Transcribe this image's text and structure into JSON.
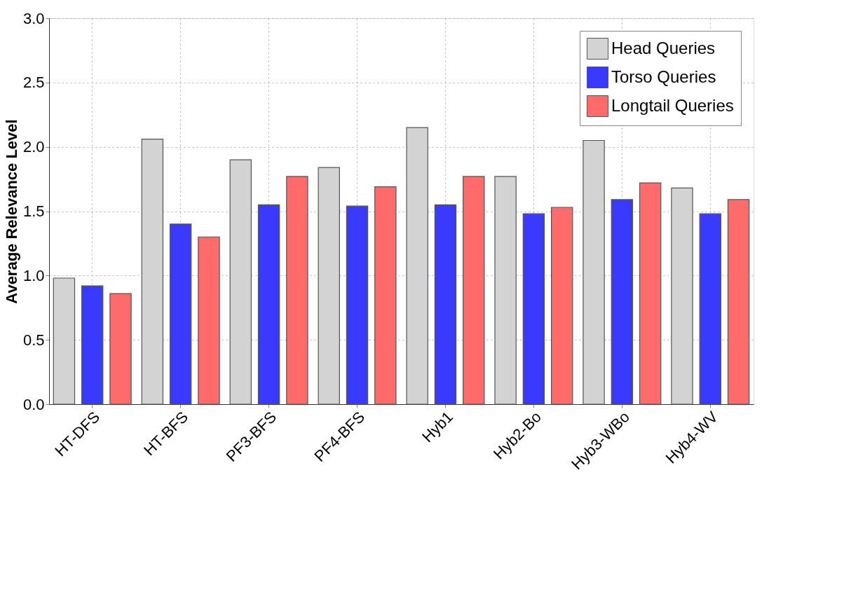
{
  "chart_data": {
    "type": "bar",
    "ylabel": "Average Relevance Level",
    "categories": [
      "HT-DFS",
      "HT-BFS",
      "PF3-BFS",
      "PF4-BFS",
      "Hyb1",
      "Hyb2-Bo",
      "Hyb3-WBo",
      "Hyb4-WV"
    ],
    "series": [
      {
        "name": "Head Queries",
        "color": "#d3d3d3",
        "values": [
          0.98,
          2.06,
          1.9,
          1.84,
          2.15,
          1.77,
          2.05,
          1.68
        ]
      },
      {
        "name": "Torso Queries",
        "color": "#3a3aff",
        "values": [
          0.92,
          1.4,
          1.55,
          1.54,
          1.55,
          1.48,
          1.59,
          1.48
        ]
      },
      {
        "name": "Longtail Queries",
        "color": "#ff6a6a",
        "values": [
          0.86,
          1.3,
          1.77,
          1.69,
          1.77,
          1.53,
          1.72,
          1.59
        ]
      }
    ],
    "ylim": [
      0,
      3
    ],
    "yticks": [
      {
        "value": 0,
        "label": "0.0"
      },
      0.5,
      {
        "value": 1,
        "label": "1.0"
      },
      1.5,
      {
        "value": 2,
        "label": "2.0"
      },
      2.5,
      {
        "value": 3,
        "label": "3.0"
      }
    ],
    "grid": true,
    "legend": "top right"
  }
}
